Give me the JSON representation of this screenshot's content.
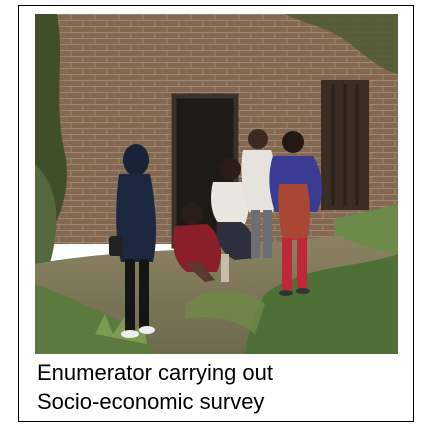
{
  "figure": {
    "caption_lines": [
      "Enumerator carrying out",
      "Socio-economic survey"
    ]
  },
  "colors": {
    "brick": "#8e6f57",
    "door": "#2a231d",
    "green": "#54703b",
    "ground": "#8f8767",
    "sari_blue": "#3a3c93",
    "trousers_red": "#c0283a",
    "jacket_navy": "#1c2740"
  }
}
